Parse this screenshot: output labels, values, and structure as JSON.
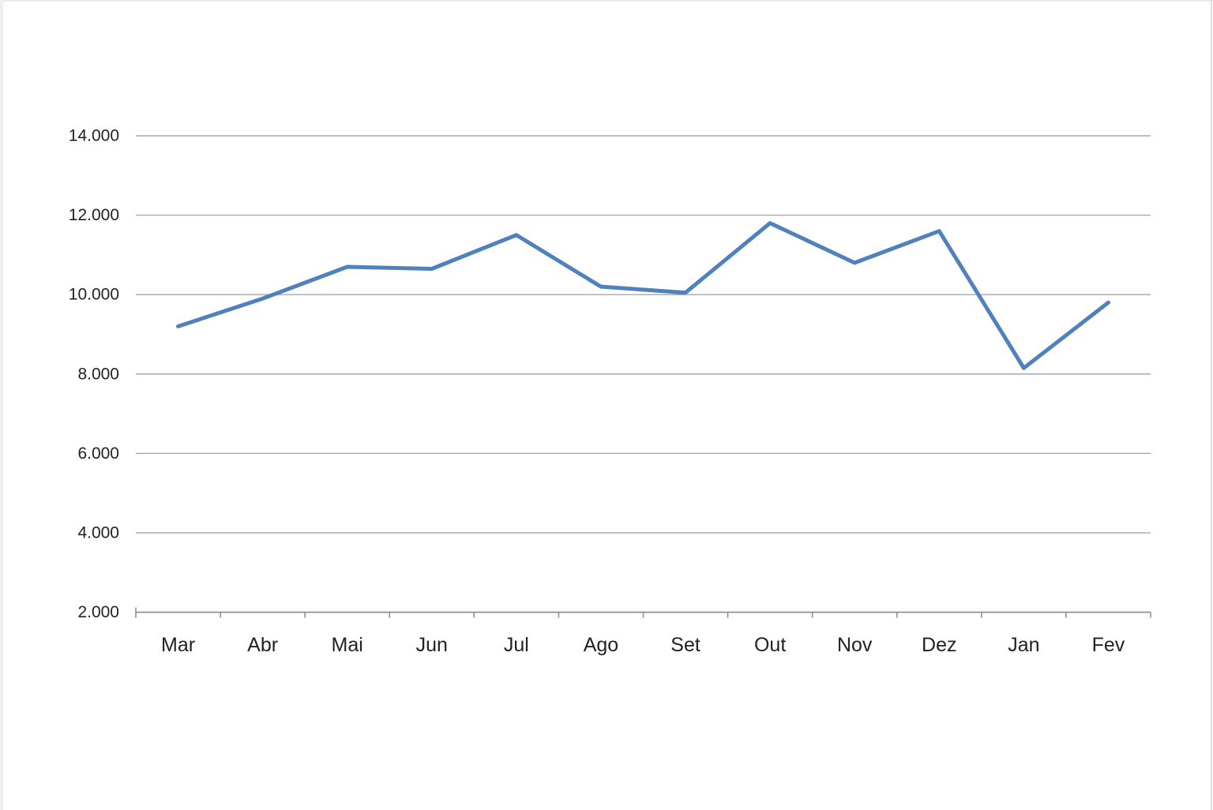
{
  "chart_data": {
    "type": "line",
    "categories": [
      "Mar",
      "Abr",
      "Mai",
      "Jun",
      "Jul",
      "Ago",
      "Set",
      "Out",
      "Nov",
      "Dez",
      "Jan",
      "Fev"
    ],
    "values": [
      9200,
      9900,
      10700,
      10650,
      11500,
      10200,
      10050,
      11800,
      10800,
      11600,
      8150,
      9800
    ],
    "title": "",
    "xlabel": "",
    "ylabel": "",
    "ylim": [
      2000,
      14000
    ],
    "y_tick_values": [
      14000,
      12000,
      10000,
      8000,
      6000,
      4000,
      2000
    ],
    "y_tick_labels": [
      "14.000",
      "12.000",
      "10.000",
      "8.000",
      "6.000",
      "4.000",
      "2.000"
    ],
    "grid": true,
    "legend": "none",
    "line_color": "#4f81bd",
    "gridline_color": "#a7a7a7",
    "axis_color": "#8f8f8f",
    "label_color": "#222222"
  }
}
